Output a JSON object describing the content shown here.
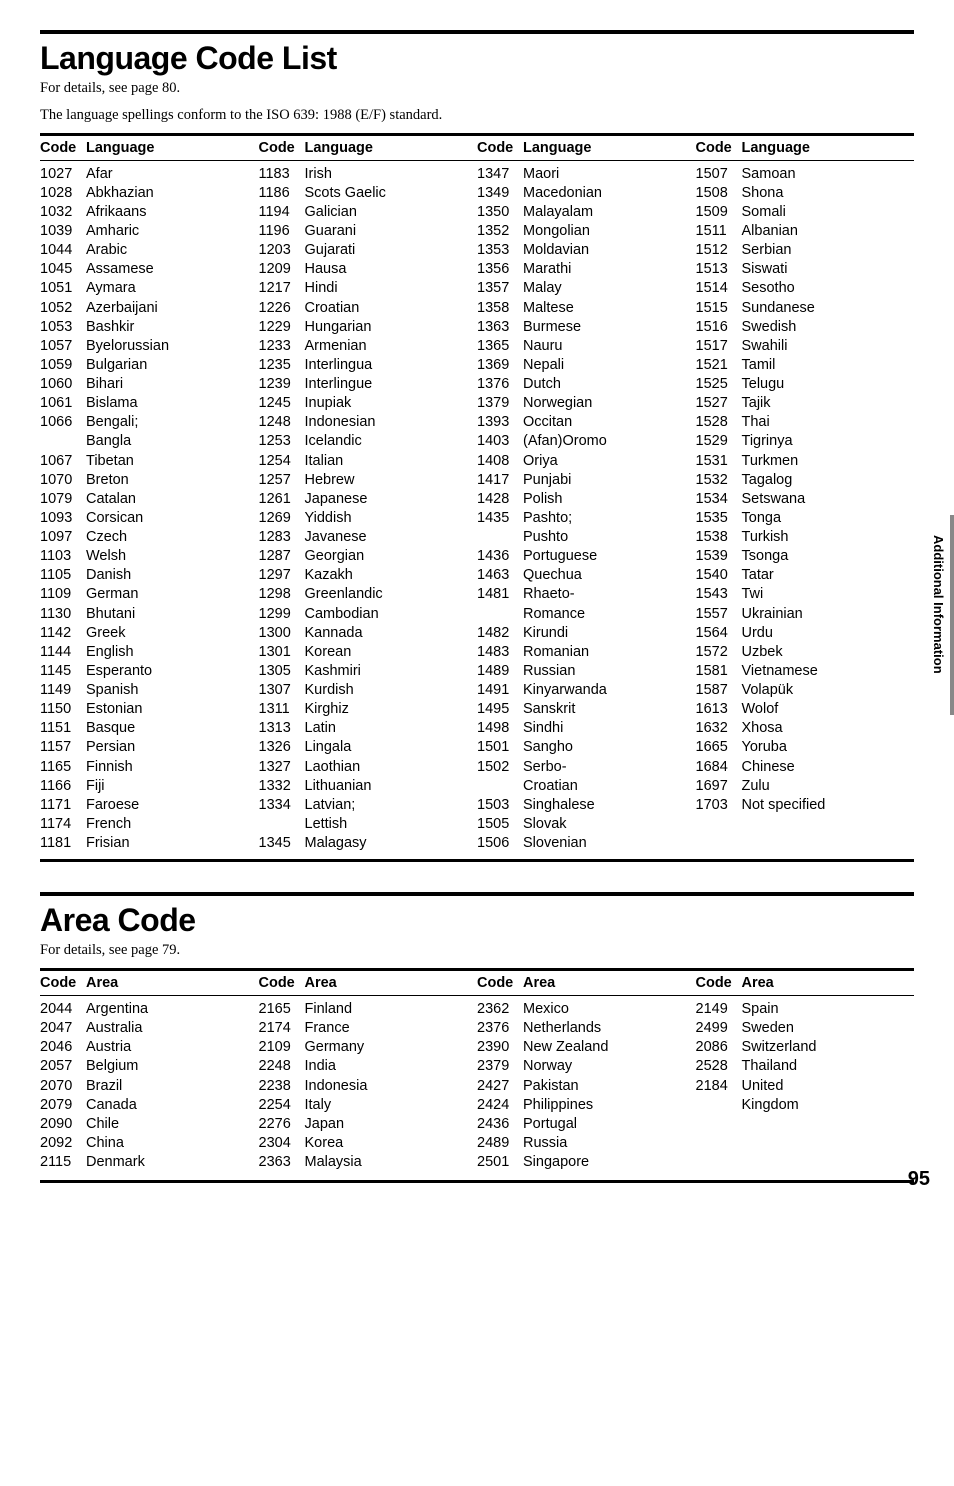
{
  "lang_section": {
    "title": "Language Code List",
    "sub_line1": "For details, see page 80.",
    "sub_line2": "The language spellings conform to the ISO 639: 1988 (E/F) standard.",
    "header_code": "Code",
    "header_lang": "Language",
    "columns": [
      [
        {
          "c": "1027",
          "l": "Afar"
        },
        {
          "c": "1028",
          "l": "Abkhazian"
        },
        {
          "c": "1032",
          "l": "Afrikaans"
        },
        {
          "c": "1039",
          "l": "Amharic"
        },
        {
          "c": "1044",
          "l": "Arabic"
        },
        {
          "c": "1045",
          "l": "Assamese"
        },
        {
          "c": "1051",
          "l": "Aymara"
        },
        {
          "c": "1052",
          "l": "Azerbaijani"
        },
        {
          "c": "1053",
          "l": "Bashkir"
        },
        {
          "c": "1057",
          "l": "Byelorussian"
        },
        {
          "c": "1059",
          "l": "Bulgarian"
        },
        {
          "c": "1060",
          "l": "Bihari"
        },
        {
          "c": "1061",
          "l": "Bislama"
        },
        {
          "c": "1066",
          "l": "Bengali;"
        },
        {
          "c": "",
          "l": "Bangla"
        },
        {
          "c": "1067",
          "l": "Tibetan"
        },
        {
          "c": "1070",
          "l": "Breton"
        },
        {
          "c": "1079",
          "l": "Catalan"
        },
        {
          "c": "1093",
          "l": "Corsican"
        },
        {
          "c": "1097",
          "l": "Czech"
        },
        {
          "c": "1103",
          "l": "Welsh"
        },
        {
          "c": "1105",
          "l": "Danish"
        },
        {
          "c": "1109",
          "l": "German"
        },
        {
          "c": "1130",
          "l": "Bhutani"
        },
        {
          "c": "1142",
          "l": "Greek"
        },
        {
          "c": "1144",
          "l": "English"
        },
        {
          "c": "1145",
          "l": "Esperanto"
        },
        {
          "c": "1149",
          "l": "Spanish"
        },
        {
          "c": "1150",
          "l": "Estonian"
        },
        {
          "c": "1151",
          "l": "Basque"
        },
        {
          "c": "1157",
          "l": "Persian"
        },
        {
          "c": "1165",
          "l": "Finnish"
        },
        {
          "c": "1166",
          "l": "Fiji"
        },
        {
          "c": "1171",
          "l": "Faroese"
        },
        {
          "c": "1174",
          "l": "French"
        },
        {
          "c": "1181",
          "l": "Frisian"
        }
      ],
      [
        {
          "c": "1183",
          "l": "Irish"
        },
        {
          "c": "1186",
          "l": "Scots Gaelic"
        },
        {
          "c": "1194",
          "l": "Galician"
        },
        {
          "c": "1196",
          "l": "Guarani"
        },
        {
          "c": "1203",
          "l": "Gujarati"
        },
        {
          "c": "1209",
          "l": "Hausa"
        },
        {
          "c": "1217",
          "l": "Hindi"
        },
        {
          "c": "1226",
          "l": "Croatian"
        },
        {
          "c": "1229",
          "l": "Hungarian"
        },
        {
          "c": "1233",
          "l": "Armenian"
        },
        {
          "c": "1235",
          "l": "Interlingua"
        },
        {
          "c": "1239",
          "l": "Interlingue"
        },
        {
          "c": "1245",
          "l": "Inupiak"
        },
        {
          "c": "1248",
          "l": "Indonesian"
        },
        {
          "c": "1253",
          "l": "Icelandic"
        },
        {
          "c": "1254",
          "l": "Italian"
        },
        {
          "c": "1257",
          "l": "Hebrew"
        },
        {
          "c": "1261",
          "l": "Japanese"
        },
        {
          "c": "1269",
          "l": "Yiddish"
        },
        {
          "c": "1283",
          "l": "Javanese"
        },
        {
          "c": "1287",
          "l": "Georgian"
        },
        {
          "c": "1297",
          "l": "Kazakh"
        },
        {
          "c": "1298",
          "l": "Greenlandic"
        },
        {
          "c": "1299",
          "l": "Cambodian"
        },
        {
          "c": "1300",
          "l": "Kannada"
        },
        {
          "c": "1301",
          "l": "Korean"
        },
        {
          "c": "1305",
          "l": "Kashmiri"
        },
        {
          "c": "1307",
          "l": "Kurdish"
        },
        {
          "c": "1311",
          "l": "Kirghiz"
        },
        {
          "c": "1313",
          "l": "Latin"
        },
        {
          "c": "1326",
          "l": "Lingala"
        },
        {
          "c": "1327",
          "l": "Laothian"
        },
        {
          "c": "1332",
          "l": "Lithuanian"
        },
        {
          "c": "1334",
          "l": "Latvian;"
        },
        {
          "c": "",
          "l": "Lettish"
        },
        {
          "c": "1345",
          "l": "Malagasy"
        }
      ],
      [
        {
          "c": "1347",
          "l": "Maori"
        },
        {
          "c": "1349",
          "l": "Macedonian"
        },
        {
          "c": "1350",
          "l": "Malayalam"
        },
        {
          "c": "1352",
          "l": "Mongolian"
        },
        {
          "c": "1353",
          "l": "Moldavian"
        },
        {
          "c": "1356",
          "l": "Marathi"
        },
        {
          "c": "1357",
          "l": "Malay"
        },
        {
          "c": "1358",
          "l": "Maltese"
        },
        {
          "c": "1363",
          "l": "Burmese"
        },
        {
          "c": "1365",
          "l": "Nauru"
        },
        {
          "c": "1369",
          "l": "Nepali"
        },
        {
          "c": "1376",
          "l": "Dutch"
        },
        {
          "c": "1379",
          "l": "Norwegian"
        },
        {
          "c": "1393",
          "l": "Occitan"
        },
        {
          "c": "1403",
          "l": "(Afan)Oromo"
        },
        {
          "c": "1408",
          "l": "Oriya"
        },
        {
          "c": "1417",
          "l": "Punjabi"
        },
        {
          "c": "1428",
          "l": "Polish"
        },
        {
          "c": "1435",
          "l": "Pashto;"
        },
        {
          "c": "",
          "l": "Pushto"
        },
        {
          "c": "1436",
          "l": "Portuguese"
        },
        {
          "c": "1463",
          "l": "Quechua"
        },
        {
          "c": "1481",
          "l": "Rhaeto-"
        },
        {
          "c": "",
          "l": "Romance"
        },
        {
          "c": "1482",
          "l": "Kirundi"
        },
        {
          "c": "1483",
          "l": "Romanian"
        },
        {
          "c": "1489",
          "l": "Russian"
        },
        {
          "c": "1491",
          "l": "Kinyarwanda"
        },
        {
          "c": "1495",
          "l": "Sanskrit"
        },
        {
          "c": "1498",
          "l": "Sindhi"
        },
        {
          "c": "1501",
          "l": "Sangho"
        },
        {
          "c": "1502",
          "l": "Serbo-"
        },
        {
          "c": "",
          "l": "Croatian"
        },
        {
          "c": "1503",
          "l": "Singhalese"
        },
        {
          "c": "1505",
          "l": "Slovak"
        },
        {
          "c": "1506",
          "l": "Slovenian"
        }
      ],
      [
        {
          "c": "1507",
          "l": "Samoan"
        },
        {
          "c": "1508",
          "l": "Shona"
        },
        {
          "c": "1509",
          "l": "Somali"
        },
        {
          "c": "1511",
          "l": "Albanian"
        },
        {
          "c": "1512",
          "l": "Serbian"
        },
        {
          "c": "1513",
          "l": "Siswati"
        },
        {
          "c": "1514",
          "l": "Sesotho"
        },
        {
          "c": "1515",
          "l": "Sundanese"
        },
        {
          "c": "1516",
          "l": "Swedish"
        },
        {
          "c": "1517",
          "l": "Swahili"
        },
        {
          "c": "1521",
          "l": "Tamil"
        },
        {
          "c": "1525",
          "l": "Telugu"
        },
        {
          "c": "1527",
          "l": "Tajik"
        },
        {
          "c": "1528",
          "l": "Thai"
        },
        {
          "c": "1529",
          "l": "Tigrinya"
        },
        {
          "c": "1531",
          "l": "Turkmen"
        },
        {
          "c": "1532",
          "l": "Tagalog"
        },
        {
          "c": "1534",
          "l": "Setswana"
        },
        {
          "c": "1535",
          "l": "Tonga"
        },
        {
          "c": "1538",
          "l": "Turkish"
        },
        {
          "c": "1539",
          "l": "Tsonga"
        },
        {
          "c": "1540",
          "l": "Tatar"
        },
        {
          "c": "1543",
          "l": "Twi"
        },
        {
          "c": "1557",
          "l": "Ukrainian"
        },
        {
          "c": "1564",
          "l": "Urdu"
        },
        {
          "c": "1572",
          "l": "Uzbek"
        },
        {
          "c": "1581",
          "l": "Vietnamese"
        },
        {
          "c": "1587",
          "l": "Volapük"
        },
        {
          "c": "1613",
          "l": "Wolof"
        },
        {
          "c": "1632",
          "l": "Xhosa"
        },
        {
          "c": "1665",
          "l": "Yoruba"
        },
        {
          "c": "1684",
          "l": "Chinese"
        },
        {
          "c": "1697",
          "l": "Zulu"
        },
        {
          "c": "",
          "l": ""
        },
        {
          "c": "1703",
          "l": "Not specified"
        }
      ]
    ]
  },
  "area_section": {
    "title": "Area Code",
    "sub_line1": "For details, see page 79.",
    "header_code": "Code",
    "header_area": "Area",
    "columns": [
      [
        {
          "c": "2044",
          "l": "Argentina"
        },
        {
          "c": "2047",
          "l": "Australia"
        },
        {
          "c": "2046",
          "l": "Austria"
        },
        {
          "c": "2057",
          "l": "Belgium"
        },
        {
          "c": "2070",
          "l": "Brazil"
        },
        {
          "c": "2079",
          "l": "Canada"
        },
        {
          "c": "2090",
          "l": "Chile"
        },
        {
          "c": "2092",
          "l": "China"
        },
        {
          "c": "2115",
          "l": "Denmark"
        }
      ],
      [
        {
          "c": "2165",
          "l": "Finland"
        },
        {
          "c": "2174",
          "l": "France"
        },
        {
          "c": "2109",
          "l": "Germany"
        },
        {
          "c": "2248",
          "l": "India"
        },
        {
          "c": "2238",
          "l": "Indonesia"
        },
        {
          "c": "2254",
          "l": "Italy"
        },
        {
          "c": "2276",
          "l": "Japan"
        },
        {
          "c": "2304",
          "l": "Korea"
        },
        {
          "c": "2363",
          "l": "Malaysia"
        }
      ],
      [
        {
          "c": "2362",
          "l": "Mexico"
        },
        {
          "c": "2376",
          "l": "Netherlands"
        },
        {
          "c": "2390",
          "l": "New Zealand"
        },
        {
          "c": "2379",
          "l": "Norway"
        },
        {
          "c": "2427",
          "l": "Pakistan"
        },
        {
          "c": "2424",
          "l": "Philippines"
        },
        {
          "c": "2436",
          "l": "Portugal"
        },
        {
          "c": "2489",
          "l": "Russia"
        },
        {
          "c": "2501",
          "l": "Singapore"
        }
      ],
      [
        {
          "c": "2149",
          "l": "Spain"
        },
        {
          "c": "2499",
          "l": "Sweden"
        },
        {
          "c": "2086",
          "l": "Switzerland"
        },
        {
          "c": "2528",
          "l": "Thailand"
        },
        {
          "c": "2184",
          "l": "United"
        },
        {
          "c": "",
          "l": "Kingdom"
        }
      ]
    ]
  },
  "side_tab": "Additional Information",
  "page_number": "95"
}
